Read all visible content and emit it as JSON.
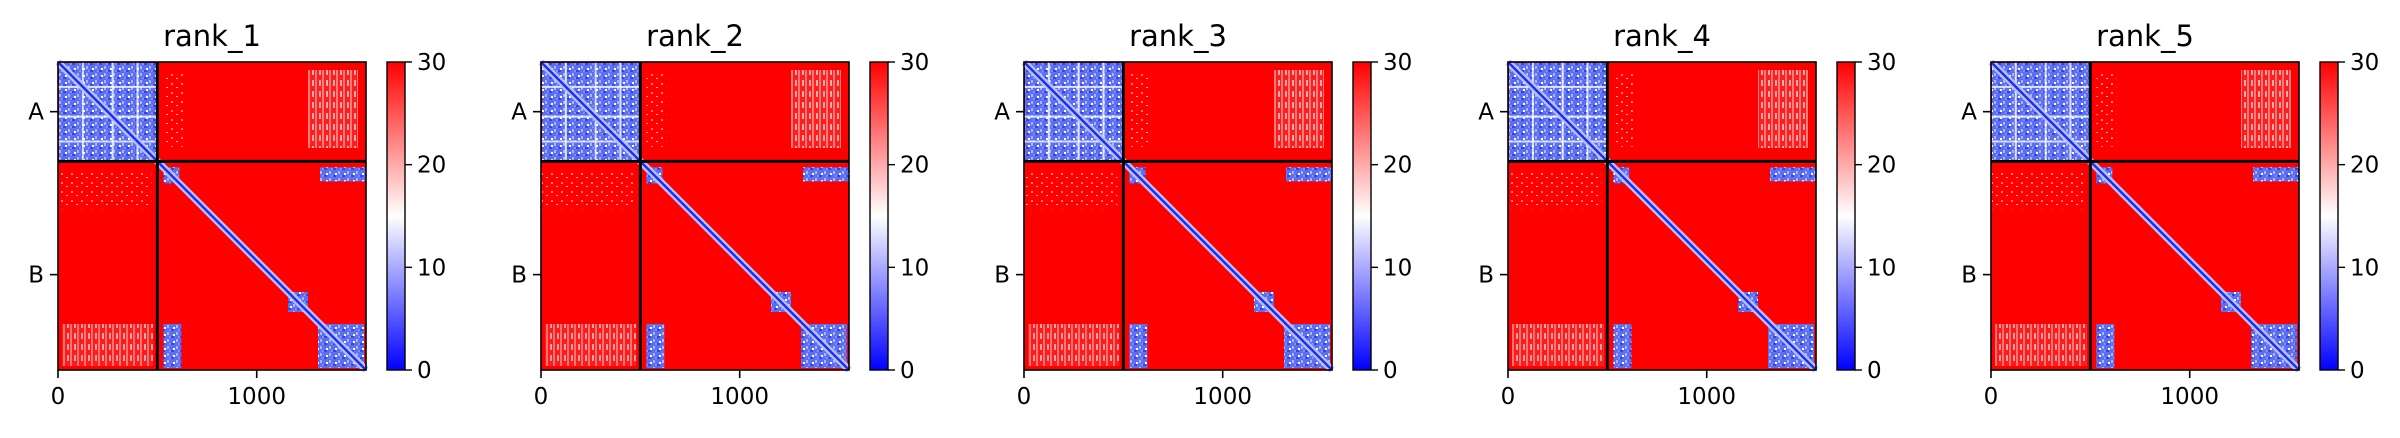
{
  "chart_data": [
    {
      "type": "heatmap",
      "title": "rank_1",
      "x_ticks": [
        {
          "value": 0,
          "label": "0"
        },
        {
          "value": 1000,
          "label": "1000"
        }
      ],
      "y_ticks": [
        {
          "value": 250,
          "label": "A"
        },
        {
          "value": 1070,
          "label": "B"
        }
      ],
      "chain_boundary": 500,
      "extent": [
        0,
        1550
      ],
      "colorbar": {
        "min": 0,
        "max": 30,
        "ticks": [
          "0",
          "10",
          "20",
          "30"
        ],
        "colormap": "bwr"
      }
    },
    {
      "type": "heatmap",
      "title": "rank_2",
      "x_ticks": [
        {
          "value": 0,
          "label": "0"
        },
        {
          "value": 1000,
          "label": "1000"
        }
      ],
      "y_ticks": [
        {
          "value": 250,
          "label": "A"
        },
        {
          "value": 1070,
          "label": "B"
        }
      ],
      "chain_boundary": 500,
      "extent": [
        0,
        1550
      ],
      "colorbar": {
        "min": 0,
        "max": 30,
        "ticks": [
          "0",
          "10",
          "20",
          "30"
        ],
        "colormap": "bwr"
      }
    },
    {
      "type": "heatmap",
      "title": "rank_3",
      "x_ticks": [
        {
          "value": 0,
          "label": "0"
        },
        {
          "value": 1000,
          "label": "1000"
        }
      ],
      "y_ticks": [
        {
          "value": 250,
          "label": "A"
        },
        {
          "value": 1070,
          "label": "B"
        }
      ],
      "chain_boundary": 500,
      "extent": [
        0,
        1550
      ],
      "colorbar": {
        "min": 0,
        "max": 30,
        "ticks": [
          "0",
          "10",
          "20",
          "30"
        ],
        "colormap": "bwr"
      }
    },
    {
      "type": "heatmap",
      "title": "rank_4",
      "x_ticks": [
        {
          "value": 0,
          "label": "0"
        },
        {
          "value": 1000,
          "label": "1000"
        }
      ],
      "y_ticks": [
        {
          "value": 250,
          "label": "A"
        },
        {
          "value": 1070,
          "label": "B"
        }
      ],
      "chain_boundary": 500,
      "extent": [
        0,
        1550
      ],
      "colorbar": {
        "min": 0,
        "max": 30,
        "ticks": [
          "0",
          "10",
          "20",
          "30"
        ],
        "colormap": "bwr"
      }
    },
    {
      "type": "heatmap",
      "title": "rank_5",
      "x_ticks": [
        {
          "value": 0,
          "label": "0"
        },
        {
          "value": 1000,
          "label": "1000"
        }
      ],
      "y_ticks": [
        {
          "value": 250,
          "label": "A"
        },
        {
          "value": 1070,
          "label": "B"
        }
      ],
      "chain_boundary": 500,
      "extent": [
        0,
        1550
      ],
      "colorbar": {
        "min": 0,
        "max": 30,
        "ticks": [
          "0",
          "10",
          "20",
          "30"
        ],
        "colormap": "bwr"
      }
    }
  ]
}
